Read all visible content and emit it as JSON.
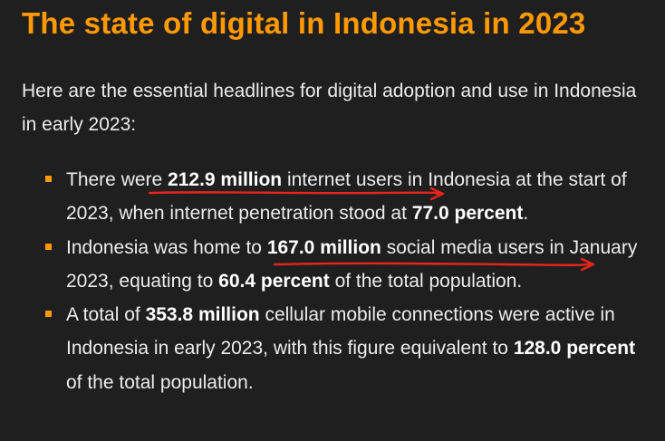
{
  "title": "The state of digital in Indonesia in 2023",
  "intro": "Here are the essential headlines for digital adoption and use in Indonesia in early 2023:",
  "bullets": [
    {
      "t1": "There were ",
      "b1": "212.9 million",
      "t2": " internet users in Indonesia at the start of 2023, when internet penetration stood at ",
      "b2": "77.0 percent",
      "t3": "."
    },
    {
      "t1": "Indonesia was home to ",
      "b1": "167.0 million",
      "t2": " social media users in January 2023, equating to ",
      "b2": "60.4 percent",
      "t3": " of the total population."
    },
    {
      "t1": "A total of ",
      "b1": "353.8 million",
      "t2": " cellular mobile connections were active in Indonesia in early 2023, with this figure equivalent to ",
      "b2": "128.0 percent",
      "t3": " of the total population."
    }
  ],
  "colors": {
    "background": "#1f1f1f",
    "accent": "#ff9900",
    "annotation": "#e8251c",
    "text": "#ececec"
  }
}
